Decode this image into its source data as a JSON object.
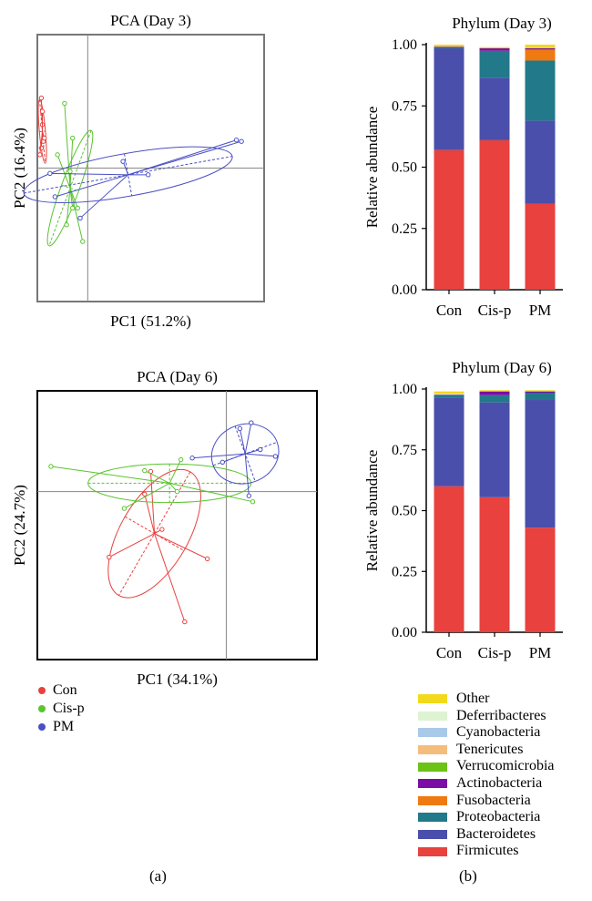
{
  "panel_labels": {
    "a": "(a)",
    "b": "(b)"
  },
  "group_colors": {
    "Con": "#e8413e",
    "Cis-p": "#5ac42e",
    "PM": "#4a4fc4"
  },
  "taxa_colors": {
    "Other": "#f2d91c",
    "Deferribacteres": "#def3d2",
    "Cyanobacteria": "#a9c9e8",
    "Tenericutes": "#f4bd7c",
    "Verrucomicrobia": "#6cc217",
    "Actinobacteria": "#7b0ea4",
    "Fusobacteria": "#ef7a12",
    "Proteobacteria": "#21798a",
    "Bacteroidetes": "#4a4fab",
    "Firmicutes": "#e8413e"
  },
  "chart_data": [
    {
      "type": "scatter",
      "title": "PCA (Day 3)",
      "xlabel": "PC1 (51.2%)",
      "ylabel": "PC2 (16.4%)",
      "xlim": [
        -1,
        3.5
      ],
      "ylim": [
        -2,
        2
      ],
      "grid": false,
      "series": [
        {
          "name": "Con",
          "points": [
            [
              -0.92,
              1.05
            ],
            [
              -0.9,
              0.65
            ],
            [
              -0.88,
              0.4
            ],
            [
              -0.92,
              0.3
            ],
            [
              -0.86,
              0.45
            ],
            [
              -0.95,
              0.2
            ],
            [
              -0.9,
              0.85
            ]
          ],
          "centroid": [
            -0.9,
            0.55
          ],
          "ellipse": {
            "rx": 0.06,
            "ry": 0.48,
            "angle": 5
          }
        },
        {
          "name": "Cis-p",
          "points": [
            [
              -0.46,
              0.97
            ],
            [
              -0.3,
              0.45
            ],
            [
              -0.35,
              -0.05
            ],
            [
              -0.3,
              -0.6
            ],
            [
              -0.2,
              -0.6
            ],
            [
              -0.1,
              -1.1
            ],
            [
              -0.42,
              -0.85
            ],
            [
              -0.6,
              0.2
            ]
          ],
          "centroid": [
            -0.35,
            -0.3
          ],
          "ellipse": {
            "rx": 0.18,
            "ry": 0.92,
            "angle": -20
          }
        },
        {
          "name": "PM",
          "points": [
            [
              -0.75,
              -0.08
            ],
            [
              -0.65,
              -0.43
            ],
            [
              -0.15,
              -0.75
            ],
            [
              2.95,
              0.42
            ],
            [
              3.05,
              0.4
            ],
            [
              0.7,
              0.1
            ],
            [
              1.2,
              -0.1
            ]
          ],
          "centroid": [
            0.8,
            -0.1
          ],
          "ellipse": {
            "rx": 2.1,
            "ry": 0.32,
            "angle": 10
          }
        }
      ]
    },
    {
      "type": "bar",
      "title": "Phylum (Day 3)",
      "ylabel": "Relative abundance",
      "categories": [
        "Con",
        "Cis-p",
        "PM"
      ],
      "ylim": [
        0,
        1
      ],
      "yticks": [
        "0.00",
        "0.25",
        "0.50",
        "0.75",
        "1.00"
      ],
      "stacked": true,
      "series": [
        {
          "name": "Firmicutes",
          "values": [
            0.57,
            0.61,
            0.35
          ]
        },
        {
          "name": "Bacteroidetes",
          "values": [
            0.415,
            0.255,
            0.34
          ]
        },
        {
          "name": "Proteobacteria",
          "values": [
            0.005,
            0.11,
            0.245
          ]
        },
        {
          "name": "Fusobacteria",
          "values": [
            0,
            0,
            0.045
          ]
        },
        {
          "name": "Actinobacteria",
          "values": [
            0.002,
            0.01,
            0.005
          ]
        },
        {
          "name": "Verrucomicrobia",
          "values": [
            0,
            0,
            0
          ]
        },
        {
          "name": "Tenericutes",
          "values": [
            0,
            0,
            0
          ]
        },
        {
          "name": "Cyanobacteria",
          "values": [
            0,
            0,
            0
          ]
        },
        {
          "name": "Deferribacteres",
          "values": [
            0,
            0,
            0
          ]
        },
        {
          "name": "Other",
          "values": [
            0.008,
            0.005,
            0.015
          ]
        }
      ]
    },
    {
      "type": "scatter",
      "title": "PCA (Day 6)",
      "xlabel": "PC1 (34.1%)",
      "ylabel": "PC2 (24.7%)",
      "xlim": [
        -2.5,
        1.2
      ],
      "ylim": [
        -2,
        1.2
      ],
      "grid": false,
      "series": [
        {
          "name": "Con",
          "points": [
            [
              -1.55,
              -0.78
            ],
            [
              -0.25,
              -0.8
            ],
            [
              -1.08,
              -0.03
            ],
            [
              -1.0,
              0.24
            ],
            [
              -0.55,
              -1.55
            ],
            [
              -0.85,
              -0.45
            ]
          ],
          "centroid": [
            -0.95,
            -0.5
          ],
          "ellipse": {
            "rx": 0.45,
            "ry": 0.85,
            "angle": -30
          }
        },
        {
          "name": "Cis-p",
          "points": [
            [
              -2.32,
              0.3
            ],
            [
              -1.08,
              0.25
            ],
            [
              -1.35,
              -0.2
            ],
            [
              -0.65,
              0.0
            ],
            [
              -0.6,
              0.38
            ],
            [
              0.35,
              -0.12
            ]
          ],
          "centroid": [
            -0.75,
            0.1
          ],
          "ellipse": {
            "rx": 1.08,
            "ry": 0.23,
            "angle": 0
          }
        },
        {
          "name": "PM",
          "points": [
            [
              0.18,
              0.75
            ],
            [
              0.33,
              0.82
            ],
            [
              0.65,
              0.42
            ],
            [
              0.45,
              0.5
            ],
            [
              -0.45,
              0.4
            ],
            [
              -0.05,
              0.35
            ],
            [
              0.3,
              -0.05
            ]
          ],
          "centroid": [
            0.25,
            0.45
          ],
          "ellipse": {
            "rx": 0.45,
            "ry": 0.35,
            "angle": 20
          }
        }
      ]
    },
    {
      "type": "bar",
      "title": "Phylum (Day 6)",
      "ylabel": "Relative abundance",
      "categories": [
        "Con",
        "Cis-p",
        "PM"
      ],
      "ylim": [
        0,
        1
      ],
      "yticks": [
        "0.00",
        "0.25",
        "0.50",
        "0.75",
        "1.00"
      ],
      "stacked": true,
      "series": [
        {
          "name": "Firmicutes",
          "values": [
            0.6,
            0.555,
            0.43
          ]
        },
        {
          "name": "Bacteroidetes",
          "values": [
            0.365,
            0.39,
            0.525
          ]
        },
        {
          "name": "Proteobacteria",
          "values": [
            0.01,
            0.03,
            0.03
          ]
        },
        {
          "name": "Fusobacteria",
          "values": [
            0,
            0,
            0
          ]
        },
        {
          "name": "Actinobacteria",
          "values": [
            0.002,
            0.015,
            0.005
          ]
        },
        {
          "name": "Verrucomicrobia",
          "values": [
            0,
            0,
            0
          ]
        },
        {
          "name": "Tenericutes",
          "values": [
            0,
            0,
            0
          ]
        },
        {
          "name": "Cyanobacteria",
          "values": [
            0,
            0,
            0
          ]
        },
        {
          "name": "Deferribacteres",
          "values": [
            0.003,
            0,
            0
          ]
        },
        {
          "name": "Other",
          "values": [
            0.01,
            0.005,
            0.005
          ]
        }
      ]
    }
  ],
  "pca_legend": [
    "Con",
    "Cis-p",
    "PM"
  ],
  "bar_legend": [
    "Other",
    "Deferribacteres",
    "Cyanobacteria",
    "Tenericutes",
    "Verrucomicrobia",
    "Actinobacteria",
    "Fusobacteria",
    "Proteobacteria",
    "Bacteroidetes",
    "Firmicutes"
  ]
}
